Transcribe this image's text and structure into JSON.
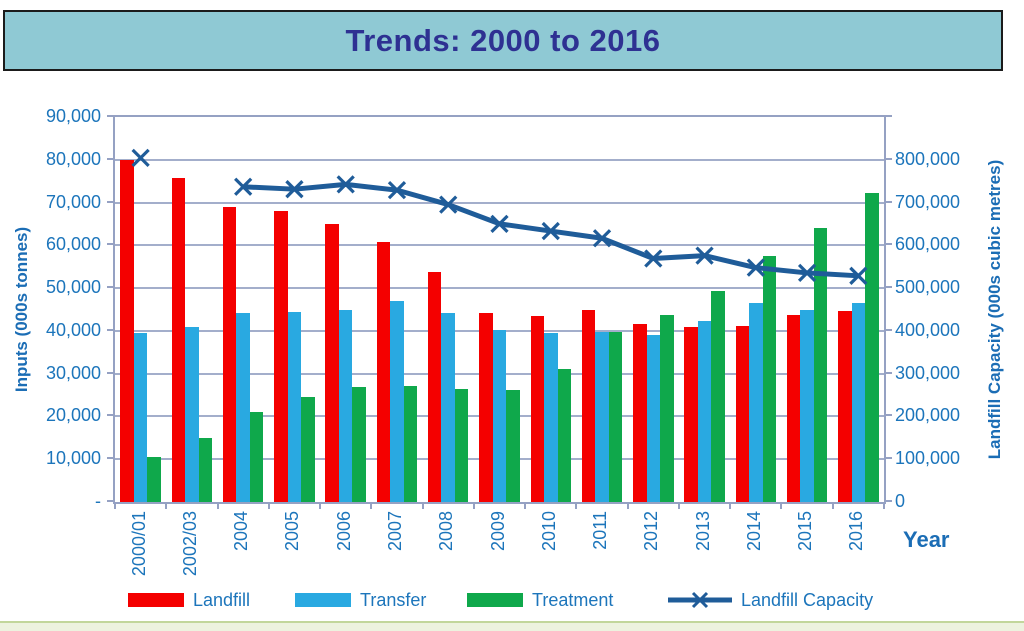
{
  "banner": {
    "title": "Trends: 2000 to 2016"
  },
  "chart_data": {
    "type": "bar",
    "subtype": "combo-bar-line",
    "categories": [
      "2000/01",
      "2002/03",
      "2004",
      "2005",
      "2006",
      "2007",
      "2008",
      "2009",
      "2010",
      "2011",
      "2012",
      "2013",
      "2014",
      "2015",
      "2016"
    ],
    "series": [
      {
        "name": "Landfill",
        "type": "bar",
        "axis": "left",
        "color": "#F40000",
        "values": [
          80000,
          75700,
          69000,
          68000,
          64900,
          60800,
          53800,
          44100,
          43500,
          44800,
          41700,
          41000,
          41200,
          43700,
          44700
        ]
      },
      {
        "name": "Transfer",
        "type": "bar",
        "axis": "left",
        "color": "#29A9E1",
        "values": [
          39500,
          41000,
          44300,
          44400,
          44800,
          47000,
          44300,
          40100,
          39600,
          39800,
          39000,
          42200,
          46600,
          44900,
          46600
        ]
      },
      {
        "name": "Treatment",
        "type": "bar",
        "axis": "left",
        "color": "#0FA84B",
        "values": [
          10500,
          14900,
          21100,
          24500,
          27000,
          27100,
          26400,
          26300,
          31000,
          39700,
          43800,
          49300,
          57400,
          64000,
          72300
        ]
      },
      {
        "name": "Landfill Capacity",
        "type": "line",
        "marker": "x",
        "axis": "right",
        "color": "#1F5C99",
        "values": [
          715000,
          null,
          655000,
          650000,
          660000,
          648000,
          618000,
          578000,
          563000,
          548000,
          506000,
          512000,
          487000,
          476000,
          470000
        ]
      }
    ],
    "left_axis": {
      "label": "Inputs (000s tonnes)",
      "min": 0,
      "max": 90000,
      "step": 10000,
      "tick_labels": [
        "-",
        "10,000",
        "20,000",
        "30,000",
        "40,000",
        "50,000",
        "60,000",
        "70,000",
        "80,000",
        "90,000"
      ]
    },
    "right_axis": {
      "label": "Landfill Capacity (000s cubic metres)",
      "min": 0,
      "max": 800000,
      "step": 100000,
      "tick_labels": [
        "0",
        "100,000",
        "200,000",
        "300,000",
        "400,000",
        "500,000",
        "600,000",
        "700,000",
        "800,000"
      ]
    },
    "x_axis": {
      "label": "Year"
    },
    "legend_position": "bottom",
    "grid": true
  },
  "colors": {
    "banner_bg": "#8FC9D4",
    "title_text": "#2E3192",
    "tick_text": "#1C75BB",
    "axis_title_text": "#1B6DB5",
    "gridline": "#A3AECB",
    "axis_line": "#95A1C3",
    "footer_bg": "#EDF2DF",
    "footer_border": "#C2D69B"
  }
}
